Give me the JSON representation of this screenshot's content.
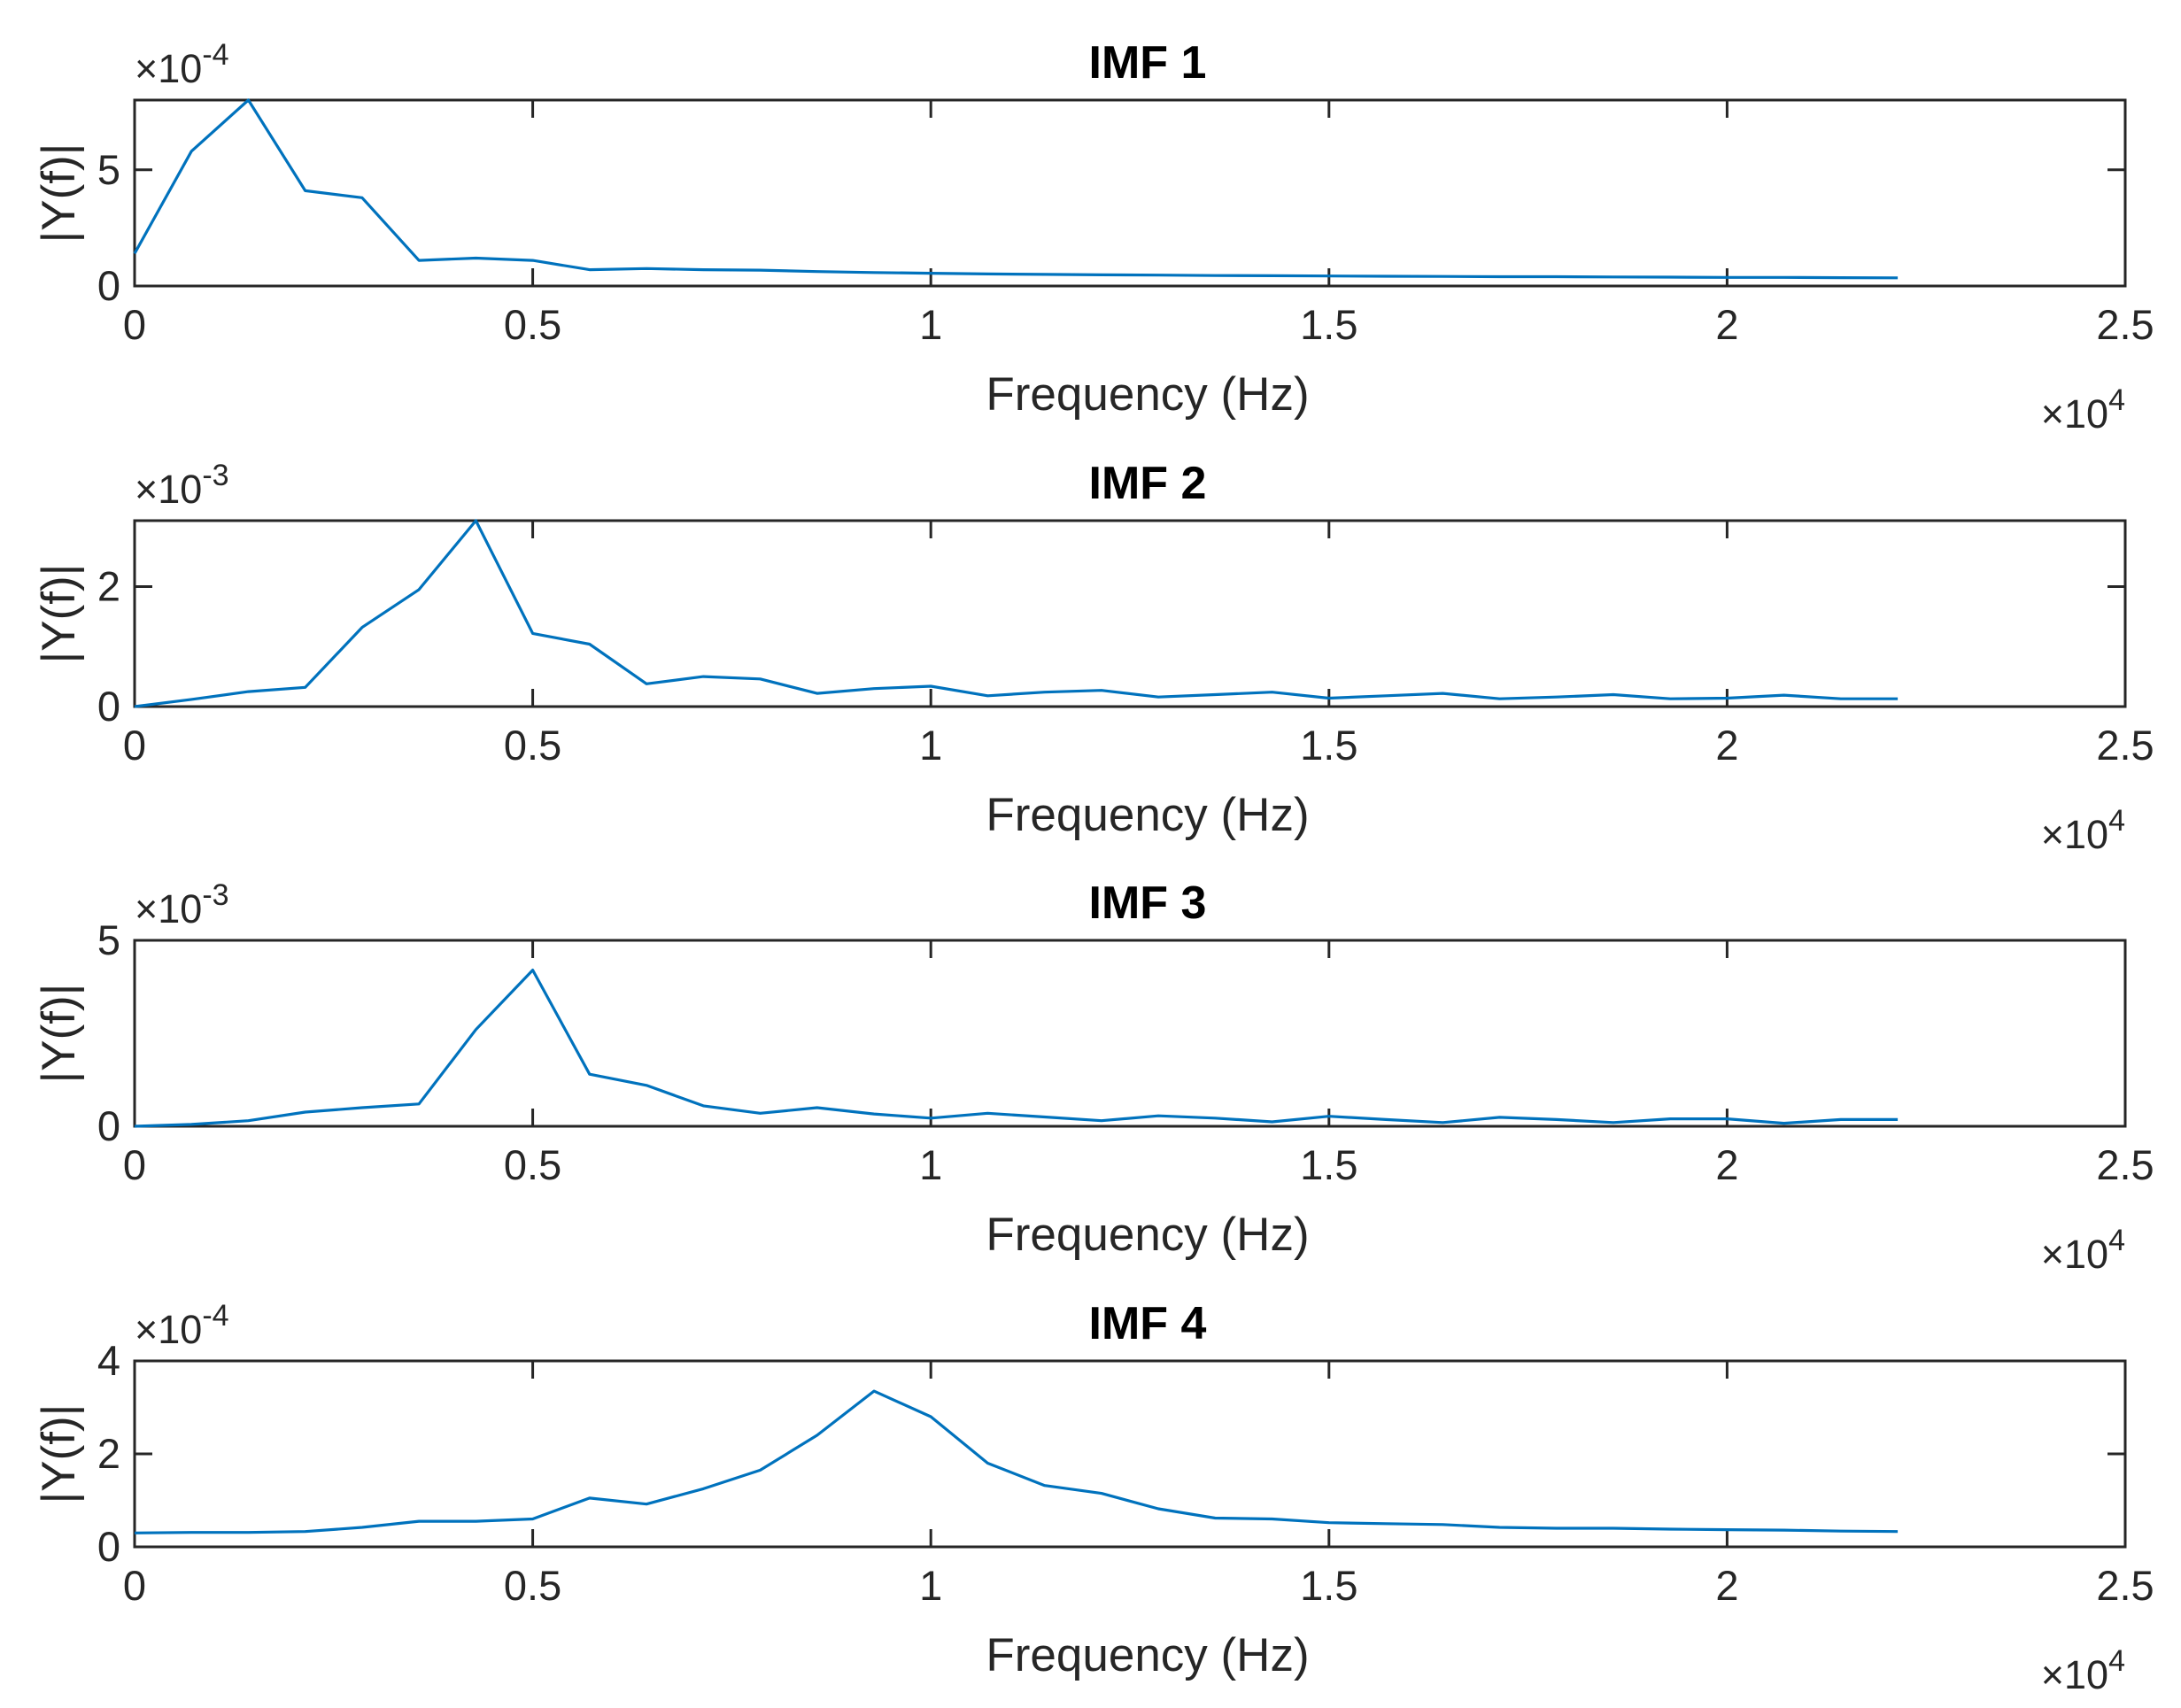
{
  "colors": {
    "line": "#0072BD",
    "axis": "#262626",
    "title": "#000000",
    "background": "#ffffff"
  },
  "chart_data": [
    {
      "type": "line",
      "title": "IMF 1",
      "xlabel": "Frequency (Hz)",
      "ylabel": "|Y(f)|",
      "xlim": [
        0,
        25000
      ],
      "ylim": [
        0,
        8
      ],
      "xticks": [
        0,
        5000,
        10000,
        15000,
        20000,
        25000
      ],
      "xtick_labels": [
        "0",
        "0.5",
        "1",
        "1.5",
        "2",
        "2.5"
      ],
      "yticks": [
        0,
        5
      ],
      "ytick_labels": [
        "0",
        "5"
      ],
      "x_exponent": {
        "base": "×10",
        "power": "4"
      },
      "y_exponent": {
        "base": "×10",
        "power": "-4"
      },
      "x": [
        0,
        714,
        1429,
        2143,
        2857,
        3571,
        4286,
        5000,
        5714,
        6429,
        7143,
        7857,
        8571,
        9286,
        10000,
        10714,
        11429,
        12143,
        12857,
        13571,
        14286,
        15000,
        15714,
        16429,
        17143,
        17857,
        18571,
        19286,
        20000,
        20714,
        21429,
        22143
      ],
      "series": [
        {
          "name": "IMF 1",
          "values": [
            1.4,
            5.8,
            8.0,
            4.1,
            3.8,
            1.1,
            1.2,
            1.1,
            0.7,
            0.75,
            0.7,
            0.68,
            0.62,
            0.58,
            0.55,
            0.52,
            0.5,
            0.48,
            0.47,
            0.45,
            0.44,
            0.43,
            0.42,
            0.41,
            0.4,
            0.4,
            0.39,
            0.38,
            0.37,
            0.37,
            0.36,
            0.35
          ]
        }
      ]
    },
    {
      "type": "line",
      "title": "IMF 2",
      "xlabel": "Frequency (Hz)",
      "ylabel": "|Y(f)|",
      "xlim": [
        0,
        25000
      ],
      "ylim": [
        0,
        3.1
      ],
      "xticks": [
        0,
        5000,
        10000,
        15000,
        20000,
        25000
      ],
      "xtick_labels": [
        "0",
        "0.5",
        "1",
        "1.5",
        "2",
        "2.5"
      ],
      "yticks": [
        0,
        2
      ],
      "ytick_labels": [
        "0",
        "2"
      ],
      "x_exponent": {
        "base": "×10",
        "power": "4"
      },
      "y_exponent": {
        "base": "×10",
        "power": "-3"
      },
      "x": [
        0,
        714,
        1429,
        2143,
        2857,
        3571,
        4286,
        5000,
        5714,
        6429,
        7143,
        7857,
        8571,
        9286,
        10000,
        10714,
        11429,
        12143,
        12857,
        13571,
        14286,
        15000,
        15714,
        16429,
        17143,
        17857,
        18571,
        19286,
        20000,
        20714,
        21429,
        22143
      ],
      "series": [
        {
          "name": "IMF 2",
          "values": [
            0.0,
            0.12,
            0.25,
            0.32,
            1.32,
            1.95,
            3.1,
            1.22,
            1.04,
            0.38,
            0.5,
            0.46,
            0.22,
            0.3,
            0.34,
            0.18,
            0.24,
            0.27,
            0.16,
            0.2,
            0.24,
            0.14,
            0.18,
            0.22,
            0.13,
            0.16,
            0.2,
            0.13,
            0.14,
            0.19,
            0.13,
            0.13
          ]
        }
      ]
    },
    {
      "type": "line",
      "title": "IMF 3",
      "xlabel": "Frequency (Hz)",
      "ylabel": "|Y(f)|",
      "xlim": [
        0,
        25000
      ],
      "ylim": [
        0,
        5
      ],
      "xticks": [
        0,
        5000,
        10000,
        15000,
        20000,
        25000
      ],
      "xtick_labels": [
        "0",
        "0.5",
        "1",
        "1.5",
        "2",
        "2.5"
      ],
      "yticks": [
        0,
        5
      ],
      "ytick_labels": [
        "0",
        "5"
      ],
      "x_exponent": {
        "base": "×10",
        "power": "4"
      },
      "y_exponent": {
        "base": "×10",
        "power": "-3"
      },
      "x": [
        0,
        714,
        1429,
        2143,
        2857,
        3571,
        4286,
        5000,
        5714,
        6429,
        7143,
        7857,
        8571,
        9286,
        10000,
        10714,
        11429,
        12143,
        12857,
        13571,
        14286,
        15000,
        15714,
        16429,
        17143,
        17857,
        18571,
        19286,
        20000,
        20714,
        21429,
        22143
      ],
      "series": [
        {
          "name": "IMF 3",
          "values": [
            0.0,
            0.05,
            0.15,
            0.38,
            0.5,
            0.6,
            2.6,
            4.2,
            1.4,
            1.1,
            0.55,
            0.35,
            0.5,
            0.33,
            0.22,
            0.35,
            0.25,
            0.15,
            0.28,
            0.22,
            0.12,
            0.27,
            0.18,
            0.1,
            0.24,
            0.18,
            0.1,
            0.2,
            0.2,
            0.08,
            0.18,
            0.18
          ]
        }
      ]
    },
    {
      "type": "line",
      "title": "IMF 4",
      "xlabel": "Frequency (Hz)",
      "ylabel": "|Y(f)|",
      "xlim": [
        0,
        25000
      ],
      "ylim": [
        0,
        4
      ],
      "xticks": [
        0,
        5000,
        10000,
        15000,
        20000,
        25000
      ],
      "xtick_labels": [
        "0",
        "0.5",
        "1",
        "1.5",
        "2",
        "2.5"
      ],
      "yticks": [
        0,
        2,
        4
      ],
      "ytick_labels": [
        "0",
        "2",
        "4"
      ],
      "x_exponent": {
        "base": "×10",
        "power": "4"
      },
      "y_exponent": {
        "base": "×10",
        "power": "-4"
      },
      "x": [
        0,
        714,
        1429,
        2143,
        2857,
        3571,
        4286,
        5000,
        5714,
        6429,
        7143,
        7857,
        8571,
        9286,
        10000,
        10714,
        11429,
        12143,
        12857,
        13571,
        14286,
        15000,
        15714,
        16429,
        17143,
        17857,
        18571,
        19286,
        20000,
        20714,
        21429,
        22143
      ],
      "series": [
        {
          "name": "IMF 4",
          "values": [
            0.3,
            0.31,
            0.31,
            0.33,
            0.42,
            0.55,
            0.55,
            0.6,
            1.05,
            0.92,
            1.25,
            1.65,
            2.4,
            3.35,
            2.8,
            1.8,
            1.32,
            1.15,
            0.82,
            0.62,
            0.6,
            0.52,
            0.5,
            0.48,
            0.42,
            0.4,
            0.4,
            0.38,
            0.37,
            0.36,
            0.34,
            0.33
          ]
        }
      ]
    }
  ]
}
